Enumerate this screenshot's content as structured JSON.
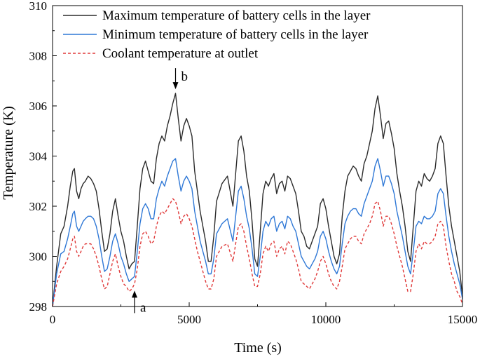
{
  "chart_data": {
    "type": "line",
    "title": "",
    "xlabel": "Time (s)",
    "ylabel": "Temperature (K)",
    "xlim": [
      0,
      15000
    ],
    "ylim": [
      298,
      310
    ],
    "xticks": [
      0,
      5000,
      10000,
      15000
    ],
    "yticks": [
      298,
      300,
      302,
      304,
      306,
      308,
      310
    ],
    "grid": false,
    "legend": "top-left",
    "series": [
      {
        "name": "Maximum temperature of battery cells in the layer",
        "color": "#2b2b2b",
        "style": "solid",
        "x": [
          0,
          150,
          300,
          420,
          550,
          650,
          740,
          800,
          880,
          960,
          1040,
          1120,
          1200,
          1300,
          1400,
          1500,
          1600,
          1700,
          1800,
          1900,
          2000,
          2100,
          2200,
          2300,
          2400,
          2500,
          2600,
          2700,
          2800,
          2900,
          3000,
          3100,
          3200,
          3300,
          3400,
          3500,
          3600,
          3700,
          3800,
          3900,
          4000,
          4100,
          4200,
          4300,
          4400,
          4500,
          4600,
          4700,
          4800,
          4900,
          5000,
          5100,
          5200,
          5300,
          5400,
          5500,
          5600,
          5700,
          5800,
          5900,
          6000,
          6200,
          6400,
          6600,
          6800,
          6900,
          7000,
          7100,
          7200,
          7300,
          7400,
          7500,
          7600,
          7700,
          7800,
          7900,
          8000,
          8100,
          8200,
          8300,
          8400,
          8500,
          8600,
          8700,
          8800,
          8900,
          9000,
          9100,
          9200,
          9300,
          9400,
          9500,
          9600,
          9700,
          9800,
          9900,
          10000,
          10100,
          10200,
          10300,
          10400,
          10500,
          10600,
          10700,
          10800,
          10900,
          11000,
          11100,
          11200,
          11300,
          11400,
          11500,
          11600,
          11700,
          11800,
          11900,
          12000,
          12100,
          12200,
          12300,
          12400,
          12500,
          12600,
          12700,
          12800,
          12900,
          13000,
          13100,
          13200,
          13300,
          13400,
          13500,
          13600,
          13700,
          13800,
          13900,
          14000,
          14100,
          14200,
          14300,
          14400,
          14500,
          14600,
          14700,
          14800,
          14900,
          15000
        ],
        "y": [
          298.0,
          299.6,
          300.9,
          301.2,
          302.0,
          302.8,
          303.4,
          303.5,
          302.6,
          302.3,
          302.7,
          302.9,
          303.0,
          303.2,
          303.1,
          302.9,
          302.6,
          301.9,
          301.0,
          300.2,
          300.3,
          300.9,
          301.8,
          302.3,
          301.6,
          301.0,
          300.6,
          300.0,
          299.5,
          299.7,
          299.8,
          301.2,
          302.7,
          303.5,
          303.8,
          303.4,
          303.0,
          302.9,
          303.9,
          304.5,
          304.8,
          304.6,
          305.2,
          305.6,
          306.1,
          306.5,
          305.5,
          304.6,
          305.2,
          305.5,
          305.2,
          304.8,
          303.4,
          302.6,
          301.8,
          301.2,
          300.6,
          299.8,
          299.8,
          300.8,
          302.2,
          302.9,
          303.2,
          302.0,
          304.6,
          304.8,
          304.2,
          303.2,
          302.6,
          301.4,
          299.9,
          299.6,
          301.0,
          302.5,
          303.0,
          302.8,
          303.1,
          303.3,
          302.5,
          302.9,
          303.0,
          302.6,
          303.2,
          303.1,
          302.8,
          302.5,
          301.8,
          301.0,
          300.8,
          300.4,
          300.3,
          300.6,
          300.9,
          301.2,
          302.1,
          302.3,
          301.9,
          301.2,
          300.6,
          300.0,
          299.7,
          300.1,
          301.6,
          302.6,
          303.2,
          303.4,
          303.6,
          303.5,
          303.2,
          303.0,
          303.7,
          304.0,
          304.5,
          305.0,
          305.9,
          306.4,
          305.6,
          304.7,
          305.3,
          305.4,
          304.9,
          304.3,
          303.3,
          302.6,
          302.0,
          301.2,
          300.2,
          299.8,
          301.2,
          302.6,
          303.0,
          302.8,
          303.3,
          303.1,
          303.0,
          303.2,
          303.5,
          304.5,
          304.8,
          304.5,
          303.2,
          302.0,
          301.2,
          300.6,
          300.0,
          299.4,
          298.4
        ],
        "x2": [
          0,
          150,
          300,
          420,
          550,
          650,
          740,
          800,
          880,
          960,
          1040,
          1120,
          1200,
          1300,
          1400,
          1500,
          1600,
          1700,
          1800,
          1900,
          2000,
          2100,
          2200,
          2300,
          2400,
          2500,
          2600,
          2700,
          2800,
          2900,
          3000,
          3100,
          3200,
          3300,
          3400,
          3500,
          3600,
          3700,
          3800,
          3900,
          4000,
          4100,
          4200,
          4300,
          4400,
          4500,
          4600,
          4700,
          4800,
          4900,
          5000,
          5100,
          5200,
          5300,
          5400,
          5500,
          5600,
          5700,
          5800,
          5900,
          6000,
          6200,
          6400,
          6600,
          6800,
          6900,
          7000,
          7100,
          7200,
          7300,
          7400,
          7500,
          7600,
          7700,
          7800,
          7900,
          8000,
          8100,
          8200,
          8300,
          8400,
          8500,
          8600,
          8700,
          8800,
          8900,
          9000,
          9100,
          9200,
          9300,
          9400,
          9500,
          9600,
          9700,
          9800,
          9900,
          10000,
          10100,
          10200,
          10300,
          10400,
          10500,
          10600,
          10700,
          10800,
          10900,
          11000,
          11100,
          11200,
          11300,
          11400,
          11500,
          11600,
          11700,
          11800,
          11900,
          12000,
          12100,
          12200,
          12300,
          12400,
          12500,
          12600,
          12700,
          12800,
          12900,
          13000,
          13100,
          13200,
          13300,
          13400,
          13500,
          13600,
          13700,
          13800,
          13900,
          14000,
          14100,
          14200,
          14300,
          14400,
          14500,
          14600,
          14700,
          14800,
          14900,
          15000
        ]
      },
      {
        "name": "Minimum temperature of battery cells in the layer",
        "color": "#2f78d6",
        "style": "solid",
        "x": [
          0,
          150,
          300,
          420,
          550,
          650,
          740,
          800,
          880,
          960,
          1040,
          1120,
          1200,
          1300,
          1400,
          1500,
          1600,
          1700,
          1800,
          1900,
          2000,
          2100,
          2200,
          2300,
          2400,
          2500,
          2600,
          2700,
          2800,
          2900,
          3000,
          3100,
          3200,
          3300,
          3400,
          3500,
          3600,
          3700,
          3800,
          3900,
          4000,
          4100,
          4200,
          4300,
          4400,
          4500,
          4600,
          4700,
          4800,
          4900,
          5000,
          5100,
          5200,
          5300,
          5400,
          5500,
          5600,
          5700,
          5800,
          5900,
          6000,
          6200,
          6400,
          6600,
          6800,
          6900,
          7000,
          7100,
          7200,
          7300,
          7400,
          7500,
          7600,
          7700,
          7800,
          7900,
          8000,
          8100,
          8200,
          8300,
          8400,
          8500,
          8600,
          8700,
          8800,
          8900,
          9000,
          9100,
          9200,
          9300,
          9400,
          9500,
          9600,
          9700,
          9800,
          9900,
          10000,
          10100,
          10200,
          10300,
          10400,
          10500,
          10600,
          10700,
          10800,
          10900,
          11000,
          11100,
          11200,
          11300,
          11400,
          11500,
          11600,
          11700,
          11800,
          11900,
          12000,
          12100,
          12200,
          12300,
          12400,
          12500,
          12600,
          12700,
          12800,
          12900,
          13000,
          13100,
          13200,
          13300,
          13400,
          13500,
          13600,
          13700,
          13800,
          13900,
          14000,
          14100,
          14200,
          14300,
          14400,
          14500,
          14600,
          14700,
          14800,
          14900,
          15000
        ],
        "y": [
          298.0,
          299.3,
          300.1,
          300.2,
          300.7,
          301.2,
          301.7,
          301.8,
          301.2,
          301.0,
          301.2,
          301.4,
          301.5,
          301.6,
          301.6,
          301.5,
          301.2,
          300.7,
          300.0,
          299.4,
          299.5,
          300.0,
          300.6,
          300.9,
          300.5,
          300.0,
          299.7,
          299.3,
          299.0,
          299.1,
          299.2,
          300.2,
          301.3,
          301.9,
          302.1,
          301.9,
          301.5,
          301.5,
          302.3,
          302.7,
          303.0,
          302.8,
          303.2,
          303.5,
          303.8,
          303.9,
          303.2,
          302.6,
          303.0,
          303.2,
          303.0,
          302.7,
          301.8,
          301.2,
          300.6,
          300.2,
          299.8,
          299.3,
          299.3,
          299.9,
          300.9,
          301.3,
          301.5,
          300.6,
          302.6,
          302.8,
          302.3,
          301.6,
          301.1,
          300.3,
          299.3,
          299.2,
          300.0,
          301.0,
          301.4,
          301.2,
          301.5,
          301.6,
          301.0,
          301.3,
          301.4,
          301.1,
          301.6,
          301.5,
          301.2,
          301.0,
          300.5,
          300.0,
          299.8,
          299.6,
          299.5,
          299.7,
          299.9,
          300.2,
          300.8,
          301.0,
          300.7,
          300.2,
          299.8,
          299.5,
          299.3,
          299.6,
          300.5,
          301.3,
          301.6,
          301.8,
          301.9,
          301.9,
          301.7,
          301.6,
          302.1,
          302.4,
          302.7,
          303.0,
          303.6,
          303.9,
          303.4,
          302.8,
          303.2,
          303.2,
          302.9,
          302.5,
          301.8,
          301.3,
          300.8,
          300.2,
          299.6,
          299.3,
          300.2,
          301.2,
          301.4,
          301.3,
          301.6,
          301.5,
          301.5,
          301.6,
          301.8,
          302.5,
          302.7,
          302.5,
          301.6,
          300.8,
          300.2,
          299.7,
          299.3,
          298.9,
          298.3
        ]
      },
      {
        "name": "Coolant temperature at outlet",
        "color": "#e03a3a",
        "style": "dashed",
        "x": [
          0,
          150,
          300,
          420,
          550,
          650,
          740,
          800,
          880,
          960,
          1040,
          1120,
          1200,
          1300,
          1400,
          1500,
          1600,
          1700,
          1800,
          1900,
          2000,
          2100,
          2200,
          2300,
          2400,
          2500,
          2600,
          2700,
          2800,
          2900,
          3000,
          3100,
          3200,
          3300,
          3400,
          3500,
          3600,
          3700,
          3800,
          3900,
          4000,
          4100,
          4200,
          4300,
          4400,
          4500,
          4600,
          4700,
          4800,
          4900,
          5000,
          5100,
          5200,
          5300,
          5400,
          5500,
          5600,
          5700,
          5800,
          5900,
          6000,
          6200,
          6400,
          6600,
          6800,
          6900,
          7000,
          7100,
          7200,
          7300,
          7400,
          7500,
          7600,
          7700,
          7800,
          7900,
          8000,
          8100,
          8200,
          8300,
          8400,
          8500,
          8600,
          8700,
          8800,
          8900,
          9000,
          9100,
          9200,
          9300,
          9400,
          9500,
          9600,
          9700,
          9800,
          9900,
          10000,
          10100,
          10200,
          10300,
          10400,
          10500,
          10600,
          10700,
          10800,
          10900,
          11000,
          11100,
          11200,
          11300,
          11400,
          11500,
          11600,
          11700,
          11800,
          11900,
          12000,
          12100,
          12200,
          12300,
          12400,
          12500,
          12600,
          12700,
          12800,
          12900,
          13000,
          13100,
          13200,
          13300,
          13400,
          13500,
          13600,
          13700,
          13800,
          13900,
          14000,
          14100,
          14200,
          14300,
          14400,
          14500,
          14600,
          14700,
          14800,
          14900,
          15000
        ],
        "y": [
          298.0,
          298.9,
          299.4,
          299.6,
          299.9,
          300.3,
          300.7,
          300.8,
          300.2,
          300.0,
          300.2,
          300.4,
          300.5,
          300.5,
          300.5,
          300.3,
          300.0,
          299.6,
          299.1,
          298.7,
          298.8,
          299.3,
          299.8,
          300.1,
          299.6,
          299.2,
          298.9,
          298.8,
          298.6,
          298.7,
          298.9,
          299.5,
          300.4,
          300.9,
          301.0,
          300.8,
          300.5,
          300.6,
          301.2,
          301.6,
          301.8,
          301.7,
          301.9,
          302.1,
          302.3,
          302.2,
          301.8,
          301.3,
          301.6,
          301.7,
          301.5,
          301.2,
          300.7,
          300.2,
          299.8,
          299.4,
          299.0,
          298.7,
          298.7,
          299.1,
          300.0,
          300.4,
          300.5,
          299.8,
          301.2,
          301.3,
          301.0,
          300.4,
          299.9,
          299.3,
          298.8,
          298.8,
          299.3,
          300.1,
          300.4,
          300.2,
          300.5,
          300.6,
          300.0,
          300.3,
          300.4,
          300.1,
          300.6,
          300.5,
          300.2,
          299.9,
          299.5,
          299.0,
          298.9,
          298.8,
          298.7,
          298.9,
          299.1,
          299.4,
          299.8,
          300.0,
          299.7,
          299.3,
          299.0,
          298.8,
          298.7,
          299.0,
          299.6,
          300.3,
          300.5,
          300.7,
          300.8,
          300.8,
          300.6,
          300.5,
          300.9,
          301.1,
          301.3,
          301.6,
          302.1,
          302.2,
          301.8,
          301.2,
          301.6,
          301.6,
          301.3,
          300.9,
          300.4,
          300.0,
          299.6,
          299.1,
          298.6,
          298.6,
          299.3,
          300.2,
          300.5,
          300.3,
          300.6,
          300.5,
          300.5,
          300.6,
          300.8,
          301.3,
          301.4,
          301.2,
          300.4,
          299.8,
          299.3,
          299.0,
          298.6,
          298.4,
          298.1
        ]
      }
    ],
    "annotations": [
      {
        "label": "a",
        "x": 3000,
        "y": 298.8,
        "direction": "up"
      },
      {
        "label": "b",
        "x": 4500,
        "y": 306.5,
        "direction": "down"
      }
    ]
  }
}
